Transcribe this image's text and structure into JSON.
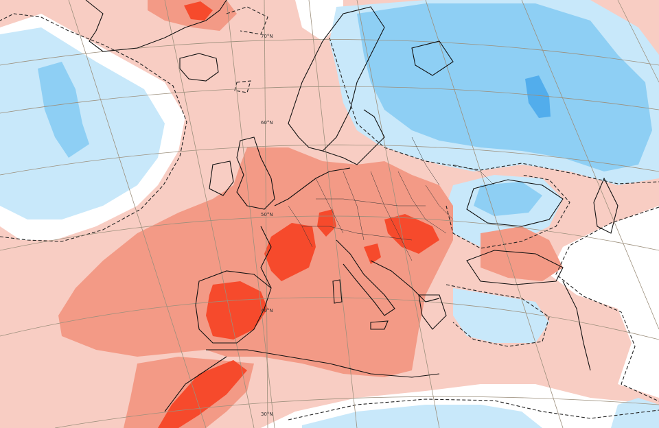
{
  "map": {
    "labels": {
      "lat_70": "70°N",
      "lat_60": "60°N",
      "lat_50": "50°N",
      "lat_40": "40°N",
      "lat_30": "30°N"
    },
    "legend_colors": {
      "strong_positive": "#f64a2c",
      "moderate_positive": "#f39a86",
      "weak_positive": "#f8cdc3",
      "neutral": "#ffffff",
      "weak_negative": "#c8e8fa",
      "moderate_negative": "#8ecff4",
      "strong_negative": "#52adec",
      "coastline": "#111111",
      "graticule": "#9c8f7c"
    }
  }
}
